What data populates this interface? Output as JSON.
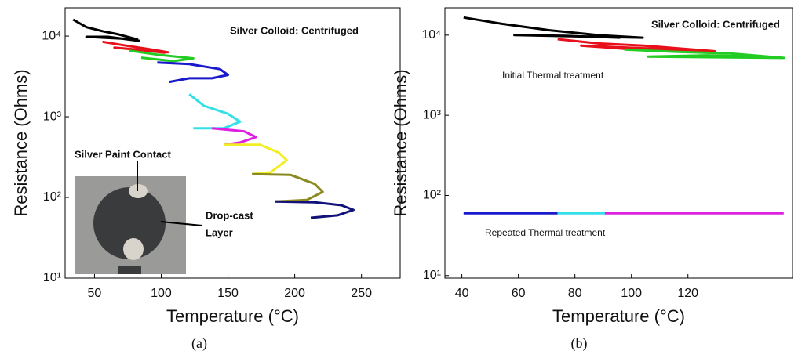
{
  "chart_data": [
    {
      "type": "line",
      "log_y": true,
      "caption": "(a)",
      "x_label": "Temperature (°C)",
      "y_label": "Resistance (Ohms)",
      "annotations": [
        "Silver Colloid: Centrifuged"
      ],
      "inset_labels": [
        "Silver Paint Contact",
        "Drop-cast",
        "Layer"
      ],
      "xlim": [
        28,
        279
      ],
      "xticks": [
        50,
        100,
        150,
        200,
        250
      ],
      "ylim": [
        10,
        22400
      ],
      "yticks": [
        {
          "value": 10,
          "label": "10¹"
        },
        {
          "value": 100,
          "label": "10²"
        },
        {
          "value": 1000,
          "label": "10³"
        },
        {
          "value": 10000,
          "label": "10⁴"
        }
      ],
      "series": [
        {
          "color": "#000000",
          "x": [
            34,
            44,
            56,
            68,
            82,
            44,
            60,
            84
          ],
          "values": [
            16000,
            12900,
            11500,
            10500,
            9100,
            9800,
            9800,
            8700
          ]
        },
        {
          "color": "#e8101a",
          "x": [
            56,
            74,
            91,
            105,
            65,
            85,
            103
          ],
          "values": [
            8500,
            7600,
            6900,
            6300,
            7200,
            6700,
            6200
          ]
        },
        {
          "color": "#22cc22",
          "x": [
            76,
            97,
            124,
            109,
            85
          ],
          "values": [
            6600,
            5900,
            5300,
            4900,
            5400
          ]
        },
        {
          "color": "#1a1acc",
          "x": [
            97,
            121,
            144,
            150,
            138,
            121,
            106
          ],
          "values": [
            4700,
            4500,
            3900,
            3300,
            3000,
            3000,
            2700
          ]
        },
        {
          "color": "#33e0e8",
          "x": [
            121,
            132,
            150,
            159,
            147,
            124
          ],
          "values": [
            1900,
            1370,
            1090,
            870,
            720,
            720
          ]
        },
        {
          "color": "#e020e0",
          "x": [
            138,
            162,
            171,
            159,
            147
          ],
          "values": [
            720,
            660,
            560,
            480,
            450
          ]
        },
        {
          "color": "#f2ee22",
          "x": [
            147,
            174,
            188,
            194,
            182,
            168
          ],
          "values": [
            450,
            450,
            360,
            290,
            205,
            195
          ]
        },
        {
          "color": "#8a8a1e",
          "x": [
            168,
            197,
            215,
            221,
            209,
            185
          ],
          "values": [
            195,
            190,
            147,
            117,
            93,
            89
          ]
        },
        {
          "color": "#12127a",
          "x": [
            185,
            215,
            235,
            244,
            232,
            212
          ],
          "values": [
            89,
            87,
            80,
            70,
            60,
            56
          ]
        }
      ]
    },
    {
      "type": "line",
      "log_y": true,
      "caption": "(b)",
      "x_label": "Temperature (°C)",
      "y_label": "Resistance (Ohms)",
      "annotations": [
        "Silver Colloid: Centrifuged",
        "Initial Thermal treatment",
        "Repeated Thermal treatment"
      ],
      "xlim": [
        34,
        157
      ],
      "xticks": [
        40,
        60,
        80,
        100,
        120
      ],
      "ylim": [
        9.3,
        21900
      ],
      "yticks": [
        {
          "value": 10,
          "label": "10¹"
        },
        {
          "value": 100,
          "label": "10²"
        },
        {
          "value": 1000,
          "label": "10³"
        },
        {
          "value": 10000,
          "label": "10⁴"
        }
      ],
      "series": [
        {
          "color": "#000000",
          "x": [
            40.6,
            54.4,
            71,
            88,
            104,
            58.6,
            76.7,
            96
          ],
          "values": [
            16600,
            13800,
            11500,
            10000,
            9300,
            10000,
            9800,
            9300
          ]
        },
        {
          "color": "#e8101a",
          "x": [
            73.9,
            87.8,
            104.4,
            129.4,
            82.2,
            98.9,
            121.1
          ],
          "values": [
            8900,
            7900,
            7400,
            6300,
            7400,
            6700,
            6200
          ]
        },
        {
          "color": "#22cc22",
          "x": [
            97.5,
            115.6,
            135,
            153.9,
            105.8,
            126.7,
            143.3
          ],
          "values": [
            6600,
            6200,
            5900,
            5200,
            5400,
            5600,
            5400
          ]
        },
        {
          "color": "#1a1acc",
          "x": [
            40.6,
            73.9
          ],
          "values": [
            60,
            60
          ]
        },
        {
          "color": "#33e0e8",
          "x": [
            73.9,
            90.6
          ],
          "values": [
            60,
            60
          ]
        },
        {
          "color": "#e020e0",
          "x": [
            90.6,
            153.9
          ],
          "values": [
            60,
            60
          ]
        }
      ]
    }
  ]
}
